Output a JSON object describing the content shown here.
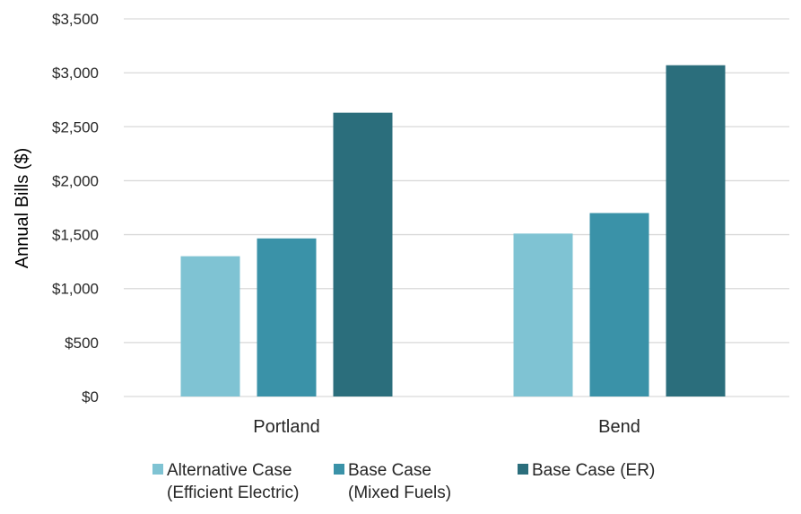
{
  "chart_data": {
    "type": "bar",
    "title": "",
    "xlabel": "",
    "ylabel": "Annual Bills ($)",
    "ylim": [
      0,
      3500
    ],
    "ytick_step": 500,
    "ytick_labels": [
      "$0",
      "$500",
      "$1,000",
      "$1,500",
      "$2,000",
      "$2,500",
      "$3,000",
      "$3,500"
    ],
    "categories": [
      "Portland",
      "Bend"
    ],
    "series": [
      {
        "name": "Alternative Case (Efficient Electric)",
        "legend_lines": [
          "Alternative Case",
          "(Efficient Electric)"
        ],
        "values": [
          1300,
          1510
        ],
        "color": "#7fc3d3"
      },
      {
        "name": "Base Case (Mixed Fuels)",
        "legend_lines": [
          "Base Case",
          "(Mixed Fuels)"
        ],
        "values": [
          1465,
          1700
        ],
        "color": "#3a92a8"
      },
      {
        "name": "Base Case (ER)",
        "legend_lines": [
          "Base Case (ER)"
        ],
        "values": [
          2630,
          3070
        ],
        "color": "#2b6e7c"
      }
    ],
    "grid": true,
    "legend_position": "bottom"
  }
}
